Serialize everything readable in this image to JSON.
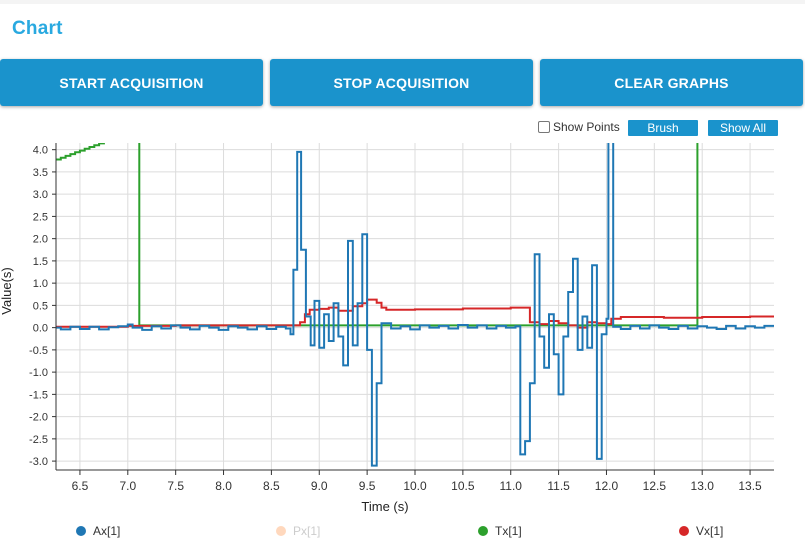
{
  "page": {
    "title": "Chart"
  },
  "buttons": {
    "start": "START ACQUISITION",
    "stop": "STOP ACQUISITION",
    "clear": "CLEAR GRAPHS"
  },
  "toolbar": {
    "show_points_label": "Show Points",
    "show_points_checked": false,
    "brush_label": "Brush",
    "show_all_label": "Show All"
  },
  "colors": {
    "accent": "#1a93cc",
    "title": "#29a9e0",
    "Ax": "#1f77b4",
    "Px": "#ffd8bd",
    "Tx": "#2ca02c",
    "Vx": "#d62728"
  },
  "chart_data": {
    "type": "line",
    "xlabel": "Time (s)",
    "ylabel": "Value(s)",
    "xlim": [
      6.25,
      13.75
    ],
    "ylim": [
      -3.2,
      4.15
    ],
    "x_ticks": [
      "6.5",
      "7.0",
      "7.5",
      "8.0",
      "8.5",
      "9.0",
      "9.5",
      "10.0",
      "10.5",
      "11.0",
      "11.5",
      "12.0",
      "12.5",
      "13.0",
      "13.5"
    ],
    "y_ticks": [
      "4.0",
      "3.5",
      "3.0",
      "2.5",
      "2.0",
      "1.5",
      "1.0",
      "0.5",
      "0.0",
      "-0.5",
      "-1.0",
      "-1.5",
      "-2.0",
      "-2.5",
      "-3.0"
    ],
    "grid": true,
    "legend_position": "bottom",
    "series": [
      {
        "name": "Ax[1]",
        "step": true,
        "points": [
          [
            6.25,
            0.0
          ],
          [
            6.3,
            -0.04
          ],
          [
            6.4,
            0.02
          ],
          [
            6.5,
            -0.03
          ],
          [
            6.6,
            0.02
          ],
          [
            6.7,
            -0.04
          ],
          [
            6.8,
            0.01
          ],
          [
            6.9,
            0.03
          ],
          [
            7.0,
            0.07
          ],
          [
            7.05,
            0.0
          ],
          [
            7.15,
            -0.05
          ],
          [
            7.25,
            0.03
          ],
          [
            7.35,
            -0.02
          ],
          [
            7.45,
            0.05
          ],
          [
            7.55,
            0.0
          ],
          [
            7.65,
            -0.04
          ],
          [
            7.75,
            0.04
          ],
          [
            7.85,
            0.0
          ],
          [
            7.95,
            -0.05
          ],
          [
            8.05,
            0.03
          ],
          [
            8.15,
            0.0
          ],
          [
            8.25,
            -0.04
          ],
          [
            8.35,
            0.03
          ],
          [
            8.45,
            -0.03
          ],
          [
            8.55,
            0.02
          ],
          [
            8.65,
            -0.02
          ],
          [
            8.7,
            -0.15
          ],
          [
            8.73,
            1.3
          ],
          [
            8.77,
            3.95
          ],
          [
            8.81,
            1.75
          ],
          [
            8.86,
            0.25
          ],
          [
            8.91,
            -0.4
          ],
          [
            8.95,
            0.6
          ],
          [
            9.0,
            -0.45
          ],
          [
            9.05,
            0.3
          ],
          [
            9.1,
            -0.3
          ],
          [
            9.15,
            0.55
          ],
          [
            9.2,
            -0.2
          ],
          [
            9.25,
            -0.85
          ],
          [
            9.3,
            1.95
          ],
          [
            9.35,
            -0.4
          ],
          [
            9.4,
            0.55
          ],
          [
            9.45,
            2.1
          ],
          [
            9.5,
            -0.5
          ],
          [
            9.55,
            -3.1
          ],
          [
            9.6,
            -1.25
          ],
          [
            9.65,
            0.1
          ],
          [
            9.75,
            -0.02
          ],
          [
            9.85,
            0.03
          ],
          [
            9.95,
            -0.04
          ],
          [
            10.05,
            0.05
          ],
          [
            10.15,
            0.0
          ],
          [
            10.25,
            0.04
          ],
          [
            10.35,
            -0.02
          ],
          [
            10.45,
            0.06
          ],
          [
            10.55,
            0.0
          ],
          [
            10.65,
            0.05
          ],
          [
            10.75,
            -0.02
          ],
          [
            10.85,
            0.04
          ],
          [
            10.95,
            0.0
          ],
          [
            11.05,
            0.03
          ],
          [
            11.1,
            -2.85
          ],
          [
            11.15,
            -2.55
          ],
          [
            11.2,
            -1.25
          ],
          [
            11.25,
            1.65
          ],
          [
            11.3,
            -0.2
          ],
          [
            11.35,
            -0.9
          ],
          [
            11.4,
            0.3
          ],
          [
            11.45,
            -0.6
          ],
          [
            11.5,
            -1.5
          ],
          [
            11.55,
            -0.2
          ],
          [
            11.6,
            0.8
          ],
          [
            11.65,
            1.55
          ],
          [
            11.7,
            -0.5
          ],
          [
            11.75,
            0.25
          ],
          [
            11.8,
            -0.45
          ],
          [
            11.85,
            1.4
          ],
          [
            11.9,
            -2.95
          ],
          [
            11.95,
            -0.15
          ],
          [
            12.0,
            0.2
          ],
          [
            12.02,
            4.2
          ],
          [
            12.07,
            0.02
          ],
          [
            12.15,
            -0.03
          ],
          [
            12.25,
            0.04
          ],
          [
            12.35,
            -0.02
          ],
          [
            12.45,
            0.05
          ],
          [
            12.55,
            0.0
          ],
          [
            12.65,
            -0.03
          ],
          [
            12.75,
            0.04
          ],
          [
            12.85,
            -0.02
          ],
          [
            12.95,
            0.03
          ],
          [
            13.05,
            0.0
          ],
          [
            13.15,
            -0.03
          ],
          [
            13.25,
            0.04
          ],
          [
            13.35,
            -0.02
          ],
          [
            13.45,
            0.03
          ],
          [
            13.55,
            0.0
          ],
          [
            13.65,
            0.04
          ],
          [
            13.75,
            0.02
          ]
        ]
      },
      {
        "name": "Px[1]",
        "points": []
      },
      {
        "name": "Tx[1]",
        "step": true,
        "points": [
          [
            6.25,
            3.78
          ],
          [
            6.3,
            3.82
          ],
          [
            6.35,
            3.86
          ],
          [
            6.4,
            3.9
          ],
          [
            6.45,
            3.94
          ],
          [
            6.5,
            3.98
          ],
          [
            6.55,
            4.02
          ],
          [
            6.6,
            4.06
          ],
          [
            6.65,
            4.1
          ],
          [
            6.7,
            4.14
          ],
          [
            6.75,
            4.18
          ],
          [
            6.8,
            4.22
          ],
          [
            6.85,
            4.26
          ],
          [
            6.9,
            4.3
          ],
          [
            7.12,
            4.3
          ],
          [
            7.12,
            0.05
          ],
          [
            7.5,
            0.05
          ],
          [
            12.95,
            0.05
          ],
          [
            12.95,
            4.3
          ],
          [
            13.0,
            4.3
          ]
        ]
      },
      {
        "name": "Vx[1]",
        "step": true,
        "points": [
          [
            6.25,
            0.02
          ],
          [
            7.0,
            0.04
          ],
          [
            7.5,
            0.05
          ],
          [
            8.0,
            0.05
          ],
          [
            8.5,
            0.05
          ],
          [
            8.8,
            0.12
          ],
          [
            8.85,
            0.3
          ],
          [
            8.9,
            0.4
          ],
          [
            9.0,
            0.42
          ],
          [
            9.1,
            0.45
          ],
          [
            9.2,
            0.38
          ],
          [
            9.35,
            0.48
          ],
          [
            9.45,
            0.55
          ],
          [
            9.5,
            0.63
          ],
          [
            9.6,
            0.56
          ],
          [
            9.65,
            0.45
          ],
          [
            9.7,
            0.4
          ],
          [
            10.0,
            0.41
          ],
          [
            10.5,
            0.43
          ],
          [
            11.0,
            0.45
          ],
          [
            11.15,
            0.45
          ],
          [
            11.2,
            0.12
          ],
          [
            11.3,
            0.08
          ],
          [
            11.4,
            0.15
          ],
          [
            11.5,
            0.1
          ],
          [
            11.6,
            0.05
          ],
          [
            11.7,
            0.0
          ],
          [
            11.8,
            0.12
          ],
          [
            11.9,
            0.1
          ],
          [
            12.0,
            0.08
          ],
          [
            12.05,
            0.2
          ],
          [
            12.1,
            0.2
          ],
          [
            12.15,
            0.24
          ],
          [
            12.4,
            0.24
          ],
          [
            12.6,
            0.22
          ],
          [
            13.0,
            0.24
          ],
          [
            13.5,
            0.25
          ],
          [
            13.75,
            0.26
          ]
        ]
      }
    ]
  }
}
